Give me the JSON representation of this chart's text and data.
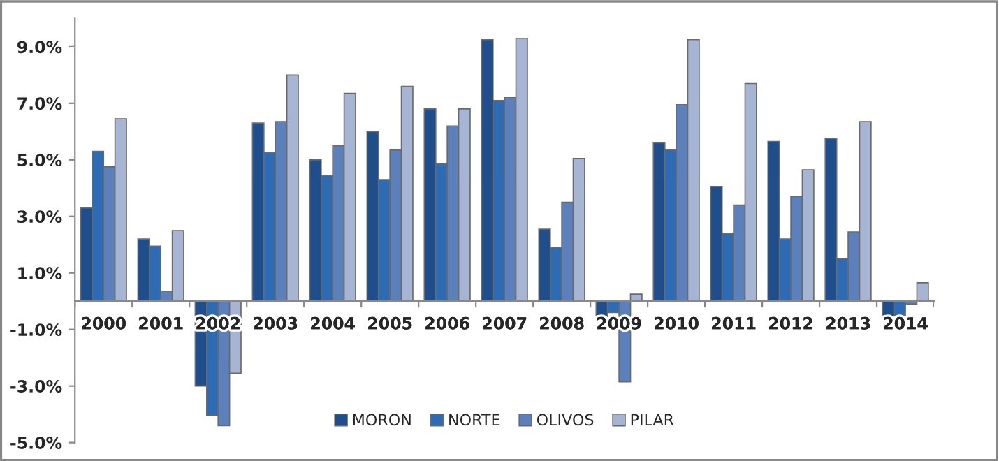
{
  "chart_data": {
    "type": "bar",
    "categories": [
      "2000",
      "2001",
      "2002",
      "2003",
      "2004",
      "2005",
      "2006",
      "2007",
      "2008",
      "2009",
      "2010",
      "2011",
      "2012",
      "2013",
      "2014"
    ],
    "series": [
      {
        "name": "MORON",
        "color": "#1f4e8c",
        "values": [
          3.3,
          2.2,
          -3.0,
          6.3,
          5.0,
          6.0,
          6.8,
          9.25,
          2.55,
          -0.7,
          5.6,
          4.05,
          5.65,
          5.75,
          -0.6
        ]
      },
      {
        "name": "NORTE",
        "color": "#2e6bb5",
        "values": [
          5.3,
          1.95,
          -4.05,
          5.25,
          4.45,
          4.3,
          4.85,
          7.1,
          1.9,
          -0.4,
          5.35,
          2.4,
          2.2,
          1.5,
          -0.5
        ]
      },
      {
        "name": "OLIVOS",
        "color": "#5b80bb",
        "values": [
          4.75,
          0.35,
          -4.4,
          6.35,
          5.5,
          5.35,
          6.2,
          7.2,
          3.5,
          -2.85,
          6.95,
          3.4,
          3.7,
          2.45,
          -0.1
        ]
      },
      {
        "name": "PILAR",
        "color": "#a7b5d5",
        "values": [
          6.45,
          2.5,
          -2.55,
          8.0,
          7.35,
          7.6,
          6.8,
          9.3,
          5.05,
          0.25,
          9.25,
          7.7,
          4.65,
          6.35,
          0.65
        ]
      }
    ],
    "ylim": [
      -5,
      10
    ],
    "yticks": [
      {
        "value": -5,
        "label": "-5.0%"
      },
      {
        "value": -3,
        "label": "-3.0%"
      },
      {
        "value": -1,
        "label": "-1.0%"
      },
      {
        "value": 1,
        "label": "1.0%"
      },
      {
        "value": 3,
        "label": "3.0%"
      },
      {
        "value": 5,
        "label": "5.0%"
      },
      {
        "value": 7,
        "label": "7.0%"
      },
      {
        "value": 9,
        "label": "9.0%"
      }
    ],
    "legend": "bottom",
    "grid": false
  }
}
